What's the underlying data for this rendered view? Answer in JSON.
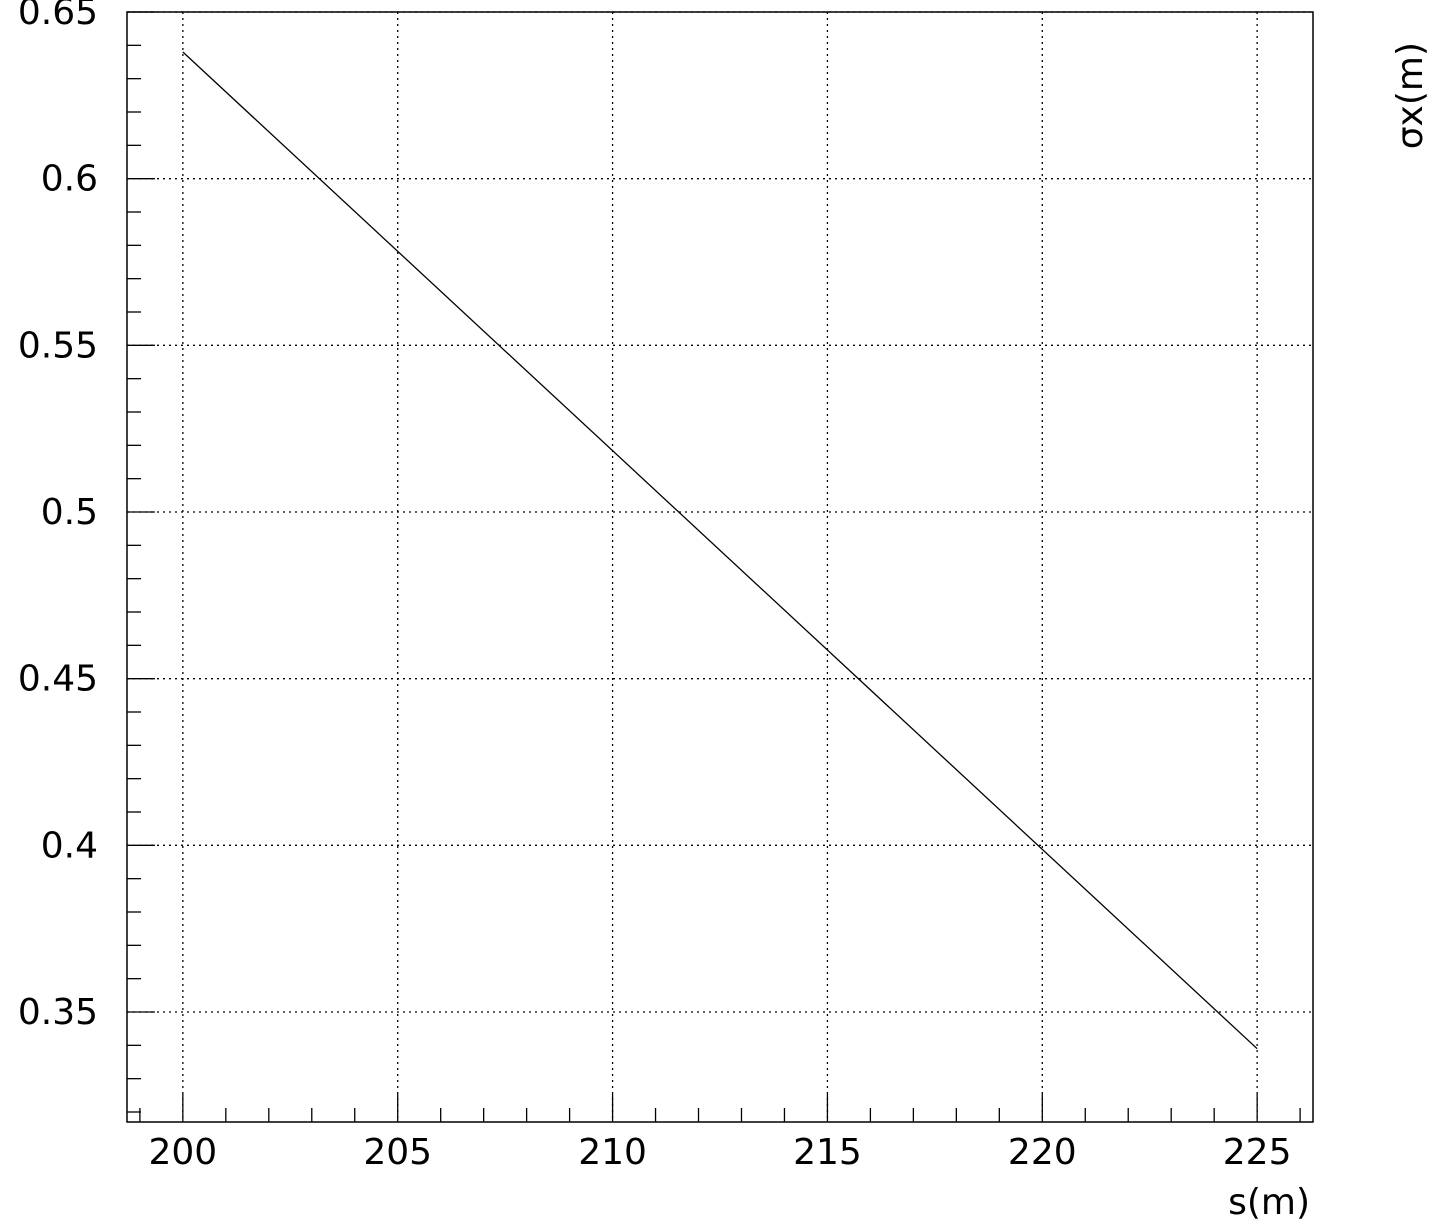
{
  "chart_data": {
    "type": "line",
    "title": "",
    "xlabel": "s(m)",
    "ylabel": "σx(m)",
    "xlim": [
      198.7,
      226.3
    ],
    "ylim": [
      0.317,
      0.65
    ],
    "x_ticks": [
      200,
      205,
      210,
      215,
      220,
      225
    ],
    "x_tick_labels": [
      "200",
      "205",
      "210",
      "215",
      "220",
      "225"
    ],
    "y_ticks": [
      0.35,
      0.4,
      0.45,
      0.5,
      0.55,
      0.6,
      0.65
    ],
    "y_tick_labels": [
      "0.35",
      "0.4",
      "0.45",
      "0.5",
      "0.55",
      "0.6",
      "0.65"
    ],
    "grid": true,
    "series": [
      {
        "x": [
          200,
          225
        ],
        "y": [
          0.638,
          0.339
        ]
      }
    ]
  }
}
